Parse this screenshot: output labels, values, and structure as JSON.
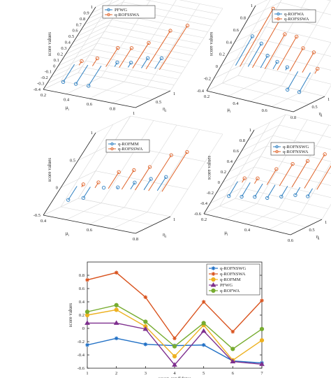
{
  "chart_data": [
    {
      "type": "3d-stem",
      "position": "top-left",
      "zlabel": "score values",
      "xlabel": "μ_i",
      "ylabel": "η_i",
      "zlim": [
        -0.4,
        1
      ],
      "zticks": [
        "1",
        "0.9",
        "0.8",
        "0.7",
        "0.6",
        "0.5",
        "0.4",
        "0.3",
        "0.2",
        "0.1",
        "0",
        "-0.1",
        "-0.2",
        "-0.3",
        "-0.4"
      ],
      "xticks": [
        "0.2",
        "0.4",
        "0.6",
        "0.8",
        "1"
      ],
      "yticks": [
        "0.5",
        "1"
      ],
      "legend": {
        "placement": "top-right"
      },
      "series": [
        {
          "name": "PFWG",
          "color": "#2d7fc1",
          "values": [
            -0.3,
            -0.32,
            -0.34,
            0.07,
            0.08,
            0.17,
            0.18
          ]
        },
        {
          "name": "q-ROFSSWA",
          "color": "#e0642a",
          "values": [
            0.07,
            0.13,
            0.32,
            0.33,
            0.43,
            0.65,
            0.75
          ]
        }
      ]
    },
    {
      "type": "3d-stem",
      "position": "top-right",
      "zlabel": "score values",
      "xlabel": "μ_i",
      "ylabel": "η_i",
      "zlim": [
        -0.4,
        1
      ],
      "zticks": [
        "1",
        "0.8",
        "0.6",
        "0.4",
        "0.2",
        "0",
        "-0.2",
        "-0.4"
      ],
      "xticks": [
        "0.2",
        "0.4",
        "0.6",
        "0.8"
      ],
      "yticks": [
        "0.5",
        "1"
      ],
      "legend": {
        "placement": "top-right"
      },
      "series": [
        {
          "name": "q-ROFWA",
          "color": "#2d7fc1",
          "values": [
            0.48,
            0.38,
            0.2,
            0.12,
            0.05,
            -0.3,
            -0.32
          ]
        },
        {
          "name": "q-ROFSSWA",
          "color": "#e0642a",
          "values": [
            0.95,
            0.78,
            0.57,
            0.55,
            0.38,
            0.33,
            0.08
          ]
        }
      ]
    },
    {
      "type": "3d-stem",
      "position": "middle-left",
      "zlabel": "score values",
      "xlabel": "μ_i",
      "ylabel": "η_i",
      "zlim": [
        -0.5,
        1
      ],
      "zticks": [
        "1",
        "0.5",
        "0",
        "-0.5"
      ],
      "xticks": [
        "0.4",
        "0.6",
        "0.8"
      ],
      "yticks": [
        "1"
      ],
      "legend": {
        "placement": "top-right"
      },
      "series": [
        {
          "name": "q-ROFMM",
          "color": "#2d7fc1",
          "values": [
            -0.25,
            -0.2,
            0.0,
            0.02,
            0.12,
            0.2,
            0.25
          ]
        },
        {
          "name": "q-ROFSSWA",
          "color": "#e0642a",
          "values": [
            0.05,
            0.1,
            0.3,
            0.35,
            0.42,
            0.65,
            0.72
          ]
        }
      ]
    },
    {
      "type": "3d-stem",
      "position": "middle-right",
      "zlabel": "score values",
      "xlabel": "μ_i",
      "ylabel": "η_i",
      "zlim": [
        -0.6,
        1
      ],
      "zticks": [
        "1",
        "0.8",
        "0.6",
        "0.4",
        "0.2",
        "0",
        "-0.2",
        "-0.4",
        "-0.6"
      ],
      "xticks": [
        "0.2",
        "0.4",
        "0.6"
      ],
      "yticks": [
        "0.5",
        "1"
      ],
      "legend": {
        "placement": "top-right"
      },
      "series": [
        {
          "name": "q-ROFNSWG",
          "color": "#2d7fc1",
          "values": [
            -0.28,
            -0.27,
            -0.25,
            -0.25,
            -0.2,
            -0.15,
            -0.15
          ]
        },
        {
          "name": "q-ROFNSWA",
          "color": "#e0642a",
          "values": [
            0.08,
            0.1,
            0.3,
            0.42,
            0.5,
            0.65,
            0.72
          ]
        }
      ]
    },
    {
      "type": "line",
      "position": "bottom",
      "ylabel": "score values",
      "xlabel": "seven candidates",
      "x": [
        1,
        2,
        3,
        4,
        5,
        6,
        7
      ],
      "xlim": [
        1,
        7
      ],
      "ylim": [
        -0.6,
        1
      ],
      "yticks": [
        0.8,
        0.6,
        0.4,
        0.2,
        0,
        -0.2,
        -0.4,
        -0.6
      ],
      "legend": {
        "placement": "top-right"
      },
      "series": [
        {
          "name": "q-ROFNSWG",
          "color": "#1f6fc5",
          "marker": "star",
          "values": [
            -0.25,
            -0.15,
            -0.24,
            -0.26,
            -0.25,
            -0.49,
            -0.52
          ]
        },
        {
          "name": "q-ROFNSWA",
          "color": "#d9531e",
          "marker": "star",
          "values": [
            0.73,
            0.84,
            0.47,
            -0.15,
            0.4,
            -0.05,
            0.42
          ]
        },
        {
          "name": "q-ROFMM",
          "color": "#edb120",
          "marker": "circle",
          "values": [
            0.2,
            0.28,
            0.03,
            -0.42,
            0.05,
            -0.48,
            -0.18
          ]
        },
        {
          "name": "PFWG",
          "color": "#7e2f8e",
          "marker": "triangle",
          "values": [
            0.08,
            0.08,
            -0.01,
            -0.55,
            -0.04,
            -0.5,
            -0.54
          ]
        },
        {
          "name": "q-ROFWA",
          "color": "#77ac30",
          "marker": "circle",
          "values": [
            0.25,
            0.35,
            0.1,
            -0.27,
            0.08,
            -0.31,
            -0.01
          ]
        }
      ]
    }
  ]
}
